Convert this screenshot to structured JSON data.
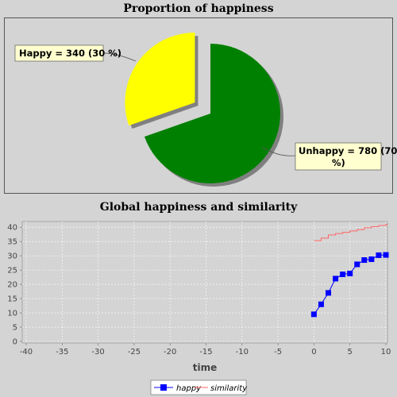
{
  "chart_data": [
    {
      "type": "pie",
      "title": "Proportion of happiness",
      "slices": [
        {
          "name": "Happy",
          "value": 340,
          "label": "Happy = 340 (30 %)",
          "color": "#ffff00",
          "exploded": true
        },
        {
          "name": "Unhappy",
          "value": 780,
          "label_line1": "Unhappy = 780 (70",
          "label_line2": "%)",
          "color": "#008000",
          "exploded": false
        }
      ]
    },
    {
      "type": "line",
      "title": "Global happiness and similarity",
      "xlabel": "time",
      "ylabel": "",
      "xlim": [
        -40,
        10
      ],
      "ylim": [
        0,
        42
      ],
      "xticks": [
        -40,
        -35,
        -30,
        -25,
        -20,
        -15,
        -10,
        -5,
        0,
        5,
        10
      ],
      "yticks": [
        0,
        5,
        10,
        15,
        20,
        25,
        30,
        35,
        40
      ],
      "grid": true,
      "legend_position": "bottom",
      "series": [
        {
          "name": "happy",
          "color": "#0000ff",
          "marker": "square",
          "step": false,
          "x": [
            0,
            1,
            2,
            3,
            4,
            5,
            6,
            7,
            8,
            9,
            10
          ],
          "y": [
            9.5,
            13,
            17,
            22,
            23.5,
            23.8,
            27,
            28.5,
            28.8,
            30.2,
            30.3
          ]
        },
        {
          "name": "similarity",
          "color": "#ff6666",
          "marker": "none",
          "step": true,
          "x": [
            0,
            1,
            2,
            3,
            4,
            5,
            6,
            7,
            8,
            9,
            10
          ],
          "y": [
            35.3,
            36.2,
            37.3,
            37.8,
            38.2,
            38.7,
            39.2,
            39.8,
            40.2,
            40.6,
            41
          ]
        }
      ]
    }
  ]
}
